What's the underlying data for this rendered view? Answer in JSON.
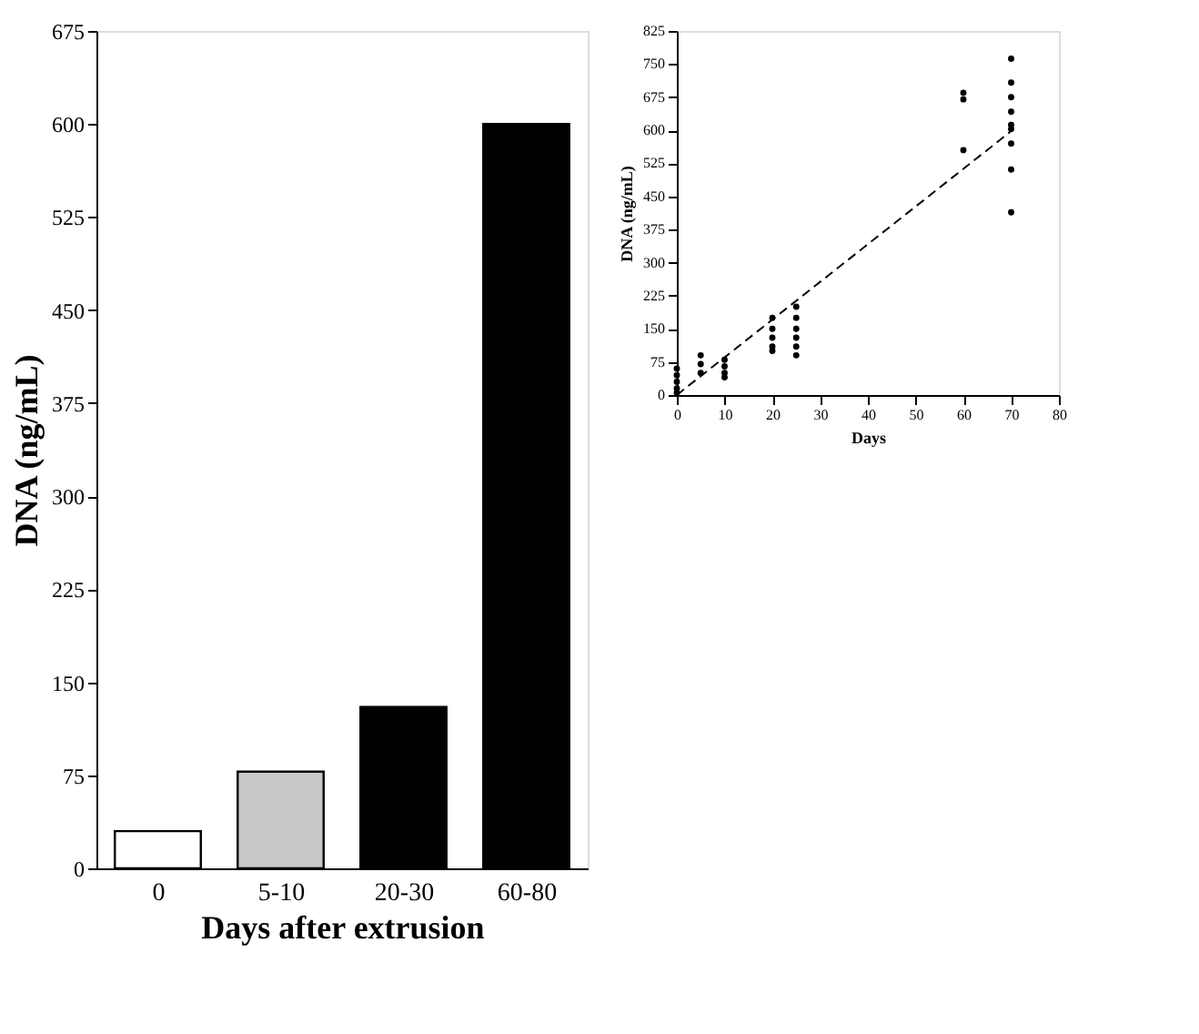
{
  "chart_data": [
    {
      "type": "bar",
      "categories": [
        "0",
        "5-10",
        "20-30",
        "60-80"
      ],
      "values": [
        30,
        78,
        130,
        600
      ],
      "colors": [
        "#ffffff",
        "#c8c8c8",
        "#000000",
        "#000000"
      ],
      "ylim": [
        0,
        675
      ],
      "yticks": [
        0,
        75,
        150,
        225,
        300,
        375,
        450,
        525,
        600,
        675
      ],
      "xlabel": "Days after extrusion",
      "ylabel": "DNA (ng/mL)"
    },
    {
      "type": "scatter",
      "xlim": [
        0,
        80
      ],
      "xticks": [
        0,
        10,
        20,
        30,
        40,
        50,
        60,
        70,
        80
      ],
      "ylim": [
        0,
        825
      ],
      "yticks": [
        0,
        75,
        150,
        225,
        300,
        375,
        450,
        525,
        600,
        675,
        750,
        825
      ],
      "xlabel": "Days",
      "ylabel": "DNA (ng/mL)",
      "series": [
        {
          "type": "scatter",
          "color": "#000000",
          "marker": "circle",
          "x": [
            0,
            0,
            0,
            0,
            0,
            5,
            5,
            5,
            10,
            10,
            10,
            10,
            20,
            20,
            20,
            20,
            20,
            25,
            25,
            25,
            25,
            25,
            25,
            60,
            60,
            60,
            70,
            70,
            70,
            70,
            70,
            70,
            70,
            70,
            70
          ],
          "values": [
            60,
            45,
            30,
            15,
            5,
            90,
            70,
            50,
            80,
            65,
            50,
            40,
            175,
            150,
            130,
            110,
            100,
            200,
            175,
            150,
            130,
            110,
            90,
            685,
            670,
            555,
            762,
            708,
            675,
            642,
            612,
            603,
            570,
            511,
            414
          ]
        },
        {
          "type": "line",
          "color": "#000000",
          "line_style": "dashed",
          "x": [
            0,
            70
          ],
          "values": [
            0,
            598
          ]
        }
      ]
    }
  ]
}
